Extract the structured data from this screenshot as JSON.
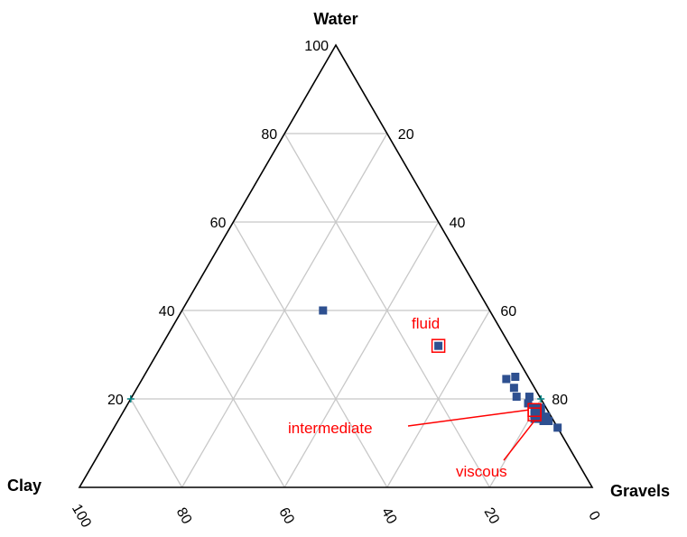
{
  "chart_data": {
    "type": "scatter",
    "subtype": "ternary",
    "vertices": {
      "top": "Water",
      "left": "Clay",
      "right": "Gravels"
    },
    "grid": true,
    "grid_step": 10,
    "left_edge_ticks": [
      "20",
      "40",
      "60",
      "80",
      "100"
    ],
    "right_edge_ticks": [
      "20",
      "40",
      "60",
      "80"
    ],
    "bottom_edge_ticks": [
      "100",
      "80",
      "60",
      "40",
      "20",
      "0"
    ],
    "series": [
      {
        "marker": "square",
        "color": "#2e5090",
        "points": [
          {
            "water": 40,
            "clay": 32.5,
            "gravels": 27.5
          },
          {
            "water": 32,
            "clay": 14,
            "gravels": 54
          },
          {
            "water": 24.5,
            "clay": 4.5,
            "gravels": 71
          },
          {
            "water": 25,
            "clay": 2.5,
            "gravels": 72.5
          },
          {
            "water": 22.5,
            "clay": 4,
            "gravels": 73.5
          },
          {
            "water": 20.5,
            "clay": 2,
            "gravels": 77.5
          },
          {
            "water": 20.5,
            "clay": 4.5,
            "gravels": 75
          },
          {
            "water": 19,
            "clay": 3,
            "gravels": 78
          },
          {
            "water": 18,
            "clay": 2,
            "gravels": 80
          },
          {
            "water": 18,
            "clay": 1,
            "gravels": 81
          },
          {
            "water": 17.5,
            "clay": 2.5,
            "gravels": 80
          },
          {
            "water": 17,
            "clay": 1.5,
            "gravels": 81.5
          },
          {
            "water": 16.5,
            "clay": 3,
            "gravels": 80.5
          },
          {
            "water": 16,
            "clay": 1,
            "gravels": 83
          },
          {
            "water": 15.5,
            "clay": 2,
            "gravels": 82.5
          },
          {
            "water": 15.5,
            "clay": 2.5,
            "gravels": 82
          },
          {
            "water": 15.5,
            "clay": 3.5,
            "gravels": 81
          },
          {
            "water": 15,
            "clay": 1,
            "gravels": 84
          },
          {
            "water": 15,
            "clay": 2,
            "gravels": 83
          },
          {
            "water": 13.5,
            "clay": 0,
            "gravels": 86.5
          }
        ]
      }
    ],
    "annotations": [
      {
        "text": "fluid",
        "color": "#ff0000",
        "target": {
          "water": 32,
          "clay": 14,
          "gravels": 54
        }
      },
      {
        "text": "intermediate",
        "color": "#ff0000",
        "target": {
          "water": 17.5,
          "clay": 2.5,
          "gravels": 80
        }
      },
      {
        "text": "viscous",
        "color": "#ff0000",
        "target": {
          "water": 16.5,
          "clay": 3,
          "gravels": 80.5
        }
      }
    ],
    "edge_markers": [
      {
        "water": 20,
        "clay": 80,
        "gravels": 0,
        "color": "#008080"
      },
      {
        "water": 20,
        "clay": 0,
        "gravels": 80,
        "color": "#008080"
      }
    ]
  }
}
